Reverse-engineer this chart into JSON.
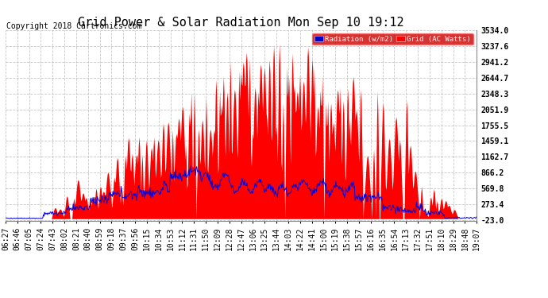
{
  "title": "Grid Power & Solar Radiation Mon Sep 10 19:12",
  "copyright": "Copyright 2018 Cartronics.com",
  "legend_labels": [
    "Radiation (w/m2)",
    "Grid (AC Watts)"
  ],
  "background_color": "#ffffff",
  "plot_bg_color": "#ffffff",
  "grid_color": "#c0c0c0",
  "yticks": [
    3534.0,
    3237.6,
    2941.2,
    2644.7,
    2348.3,
    2051.9,
    1755.5,
    1459.1,
    1162.7,
    866.2,
    569.8,
    273.4,
    -23.0
  ],
  "ymin": -23.0,
  "ymax": 3534.0,
  "radiation_color": "#0000dd",
  "grid_power_color": "#ff0000",
  "title_fontsize": 11,
  "tick_fontsize": 7,
  "copyright_fontsize": 7,
  "xtick_labels": [
    "06:27",
    "06:46",
    "07:05",
    "07:24",
    "07:43",
    "08:02",
    "08:21",
    "08:40",
    "08:59",
    "09:18",
    "09:37",
    "09:56",
    "10:15",
    "10:34",
    "10:53",
    "11:12",
    "11:31",
    "11:50",
    "12:09",
    "12:28",
    "12:47",
    "13:06",
    "13:25",
    "13:44",
    "14:03",
    "14:22",
    "14:41",
    "15:00",
    "15:19",
    "15:38",
    "15:57",
    "16:16",
    "16:35",
    "16:54",
    "17:13",
    "17:32",
    "17:51",
    "18:10",
    "18:29",
    "18:48",
    "19:07"
  ]
}
